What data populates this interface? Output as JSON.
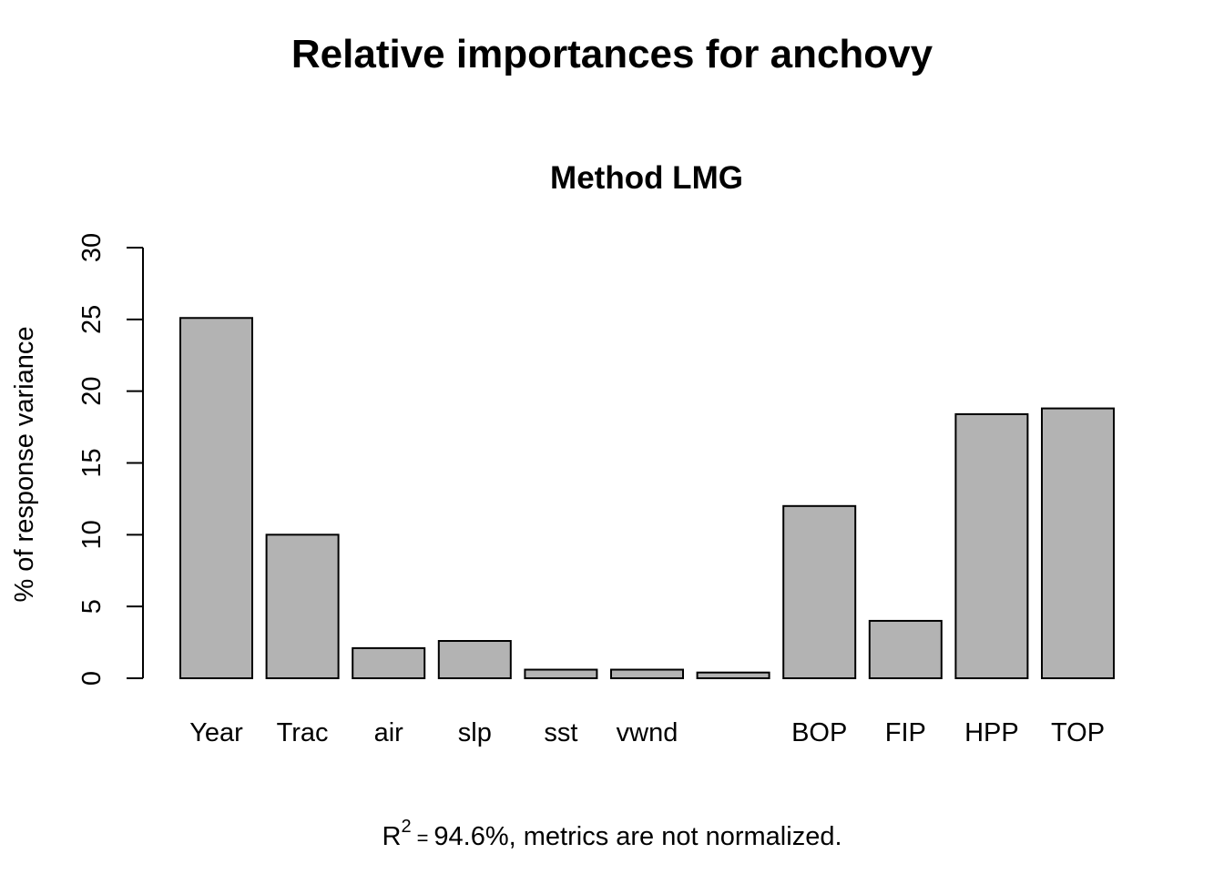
{
  "chart_data": {
    "type": "bar",
    "title": "Relative importances for anchovy",
    "subtitle": "Method LMG",
    "xlabel": "",
    "ylabel": "% of response variance",
    "categories": [
      "Year",
      "Trac",
      "air",
      "slp",
      "sst",
      "vwnd",
      "",
      "BOP",
      "FIP",
      "HPP",
      "TOP"
    ],
    "values": [
      25.1,
      10.0,
      2.1,
      2.6,
      0.6,
      0.6,
      0.4,
      12.0,
      4.0,
      18.4,
      18.8
    ],
    "ylim": [
      0,
      30
    ],
    "yticks": [
      0,
      5,
      10,
      15,
      20,
      25,
      30
    ],
    "grid": false,
    "legend": "none",
    "bar_color": "#b3b3b3",
    "bar_stroke": "#000000"
  },
  "footnote": {
    "r": "R",
    "sup": "2",
    "eq": "=",
    "text": "94.6%, metrics are not normalized."
  }
}
